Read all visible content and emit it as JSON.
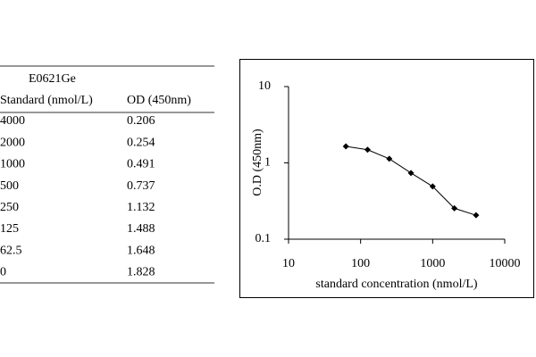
{
  "table": {
    "title": "E0621Ge",
    "header": [
      "Standard (nmol/L)",
      "OD (450nm)"
    ],
    "rows": [
      [
        "4000",
        "0.206"
      ],
      [
        "2000",
        "0.254"
      ],
      [
        "1000",
        "0.491"
      ],
      [
        "500",
        "0.737"
      ],
      [
        "250",
        "1.132"
      ],
      [
        "125",
        "1.488"
      ],
      [
        "62.5",
        "1.648"
      ],
      [
        "0",
        "1.828"
      ]
    ]
  },
  "chart_data": {
    "type": "line",
    "x_label": "standard concentration (nmol/L)",
    "y_label": "O.D (450nm)",
    "x": [
      62.5,
      125,
      250,
      500,
      1000,
      2000,
      4000
    ],
    "values": [
      1.648,
      1.488,
      1.132,
      0.737,
      0.491,
      0.254,
      0.206
    ],
    "color": "#000000",
    "marker": "diamond",
    "xscale": "log",
    "yscale": "log",
    "xlim": [
      10,
      10000
    ],
    "ylim": [
      0.1,
      10
    ],
    "xticks": [
      10,
      100,
      1000,
      10000
    ],
    "yticks": [
      0.1,
      1,
      10
    ]
  }
}
